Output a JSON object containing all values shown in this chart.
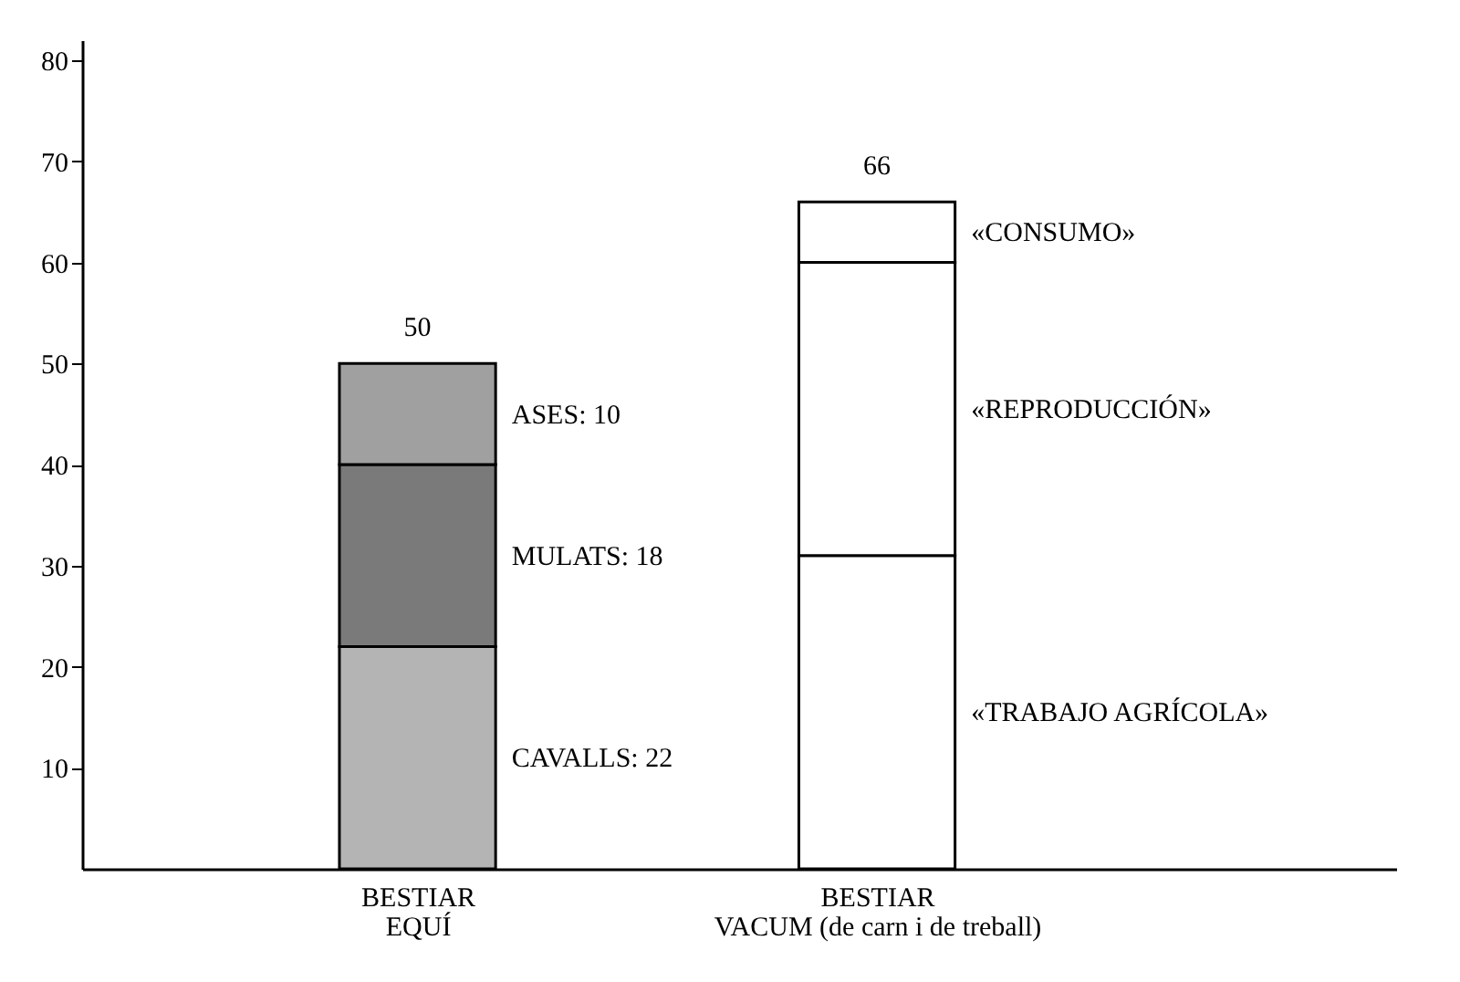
{
  "chart_data": {
    "type": "bar",
    "stacked": true,
    "categories": [
      "BESTIAR\nEQUÍ",
      "BESTIAR\nVACUM (de carn i de treball)"
    ],
    "series": [
      {
        "name": "CAVALLS: 22",
        "color": "#b4b4b4",
        "values": [
          22,
          null
        ]
      },
      {
        "name": "MULATS: 18",
        "color": "#7a7a7a",
        "values": [
          18,
          null
        ]
      },
      {
        "name": "ASES: 10",
        "color": "#a0a0a0",
        "values": [
          10,
          null
        ]
      },
      {
        "name": "«TRABAJO AGRÍCOLA»",
        "color": "#ffffff",
        "values": [
          null,
          31
        ]
      },
      {
        "name": "«REPRODUCCIÓN»",
        "color": "#ffffff",
        "values": [
          null,
          29
        ]
      },
      {
        "name": "«CONSUMO»",
        "color": "#ffffff",
        "values": [
          null,
          6
        ]
      }
    ],
    "totals": [
      "50",
      "66"
    ],
    "ylim": [
      0,
      82
    ],
    "yticks": [
      10,
      20,
      30,
      40,
      50,
      60,
      70,
      80
    ]
  }
}
